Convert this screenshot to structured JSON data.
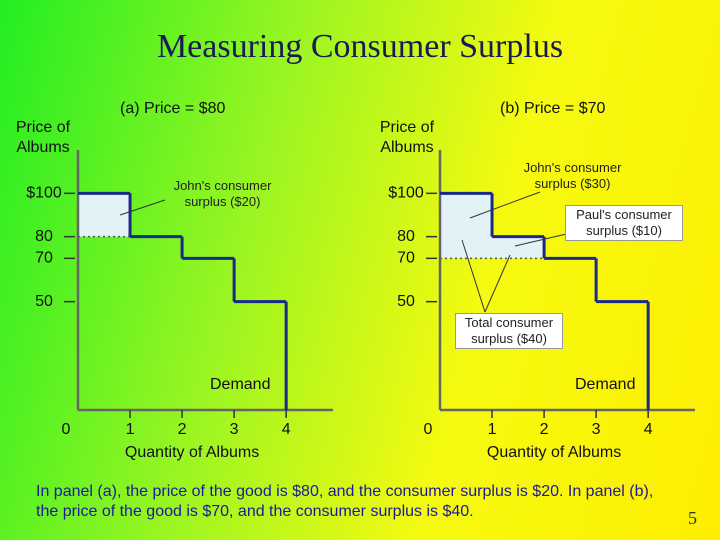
{
  "title": "Measuring Consumer Surplus",
  "chart_data": [
    {
      "type": "step",
      "title": "(a) Price = $80",
      "y_label": "Price of Albums",
      "x_label": "Quantity of Albums",
      "x": [
        1,
        2,
        3,
        4
      ],
      "values": [
        100,
        80,
        70,
        50
      ],
      "series_name": "Demand",
      "price": 80,
      "xlim": [
        0,
        4.9
      ],
      "xticks": [
        0,
        1,
        2,
        3,
        4
      ],
      "ylim": [
        0,
        120
      ],
      "yticks": [
        {
          "value": 100,
          "label": "$100"
        },
        80,
        70,
        50
      ],
      "color": "#1a2a8a",
      "surplus_color": "#e2f2f6",
      "annotations": [
        {
          "text": "John's consumer surplus ($20)"
        }
      ]
    },
    {
      "type": "step",
      "title": "(b) Price = $70",
      "y_label": "Price of Albums",
      "x_label": "Quantity of Albums",
      "x": [
        1,
        2,
        3,
        4
      ],
      "values": [
        100,
        80,
        70,
        50
      ],
      "series_name": "Demand",
      "price": 70,
      "xlim": [
        0,
        4.9
      ],
      "xticks": [
        0,
        1,
        2,
        3,
        4
      ],
      "ylim": [
        0,
        120
      ],
      "yticks": [
        {
          "value": 100,
          "label": "$100"
        },
        80,
        70,
        50
      ],
      "color": "#1a2a8a",
      "surplus_color": "#e2f2f6",
      "annotations": [
        {
          "text": "John's consumer surplus ($30)"
        },
        {
          "text": "Paul's consumer surplus ($10)"
        },
        {
          "text": "Total consumer surplus ($40)"
        }
      ]
    }
  ],
  "caption": "In panel (a), the price of the good is $80, and the consumer  surplus is $20. In panel (b), the price of the good is $70, and the consumer surplus is $40.",
  "page_number": 5
}
